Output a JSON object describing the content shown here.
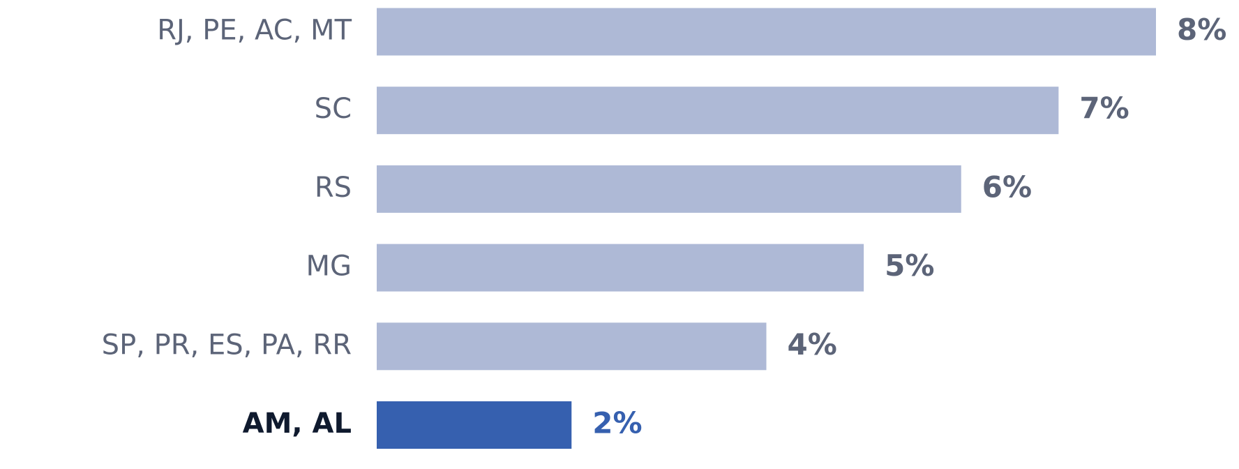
{
  "chart_data": {
    "type": "bar",
    "orientation": "horizontal",
    "categories": [
      "RJ, PE, AC, MT",
      "SC",
      "RS",
      "MG",
      "SP, PR, ES, PA, RR",
      "AM, AL"
    ],
    "values": [
      8,
      7,
      6,
      5,
      4,
      2
    ],
    "value_labels": [
      "8%",
      "7%",
      "6%",
      "5%",
      "4%",
      "2%"
    ],
    "colors": [
      "#aeb9d6",
      "#aeb9d6",
      "#aeb9d6",
      "#aeb9d6",
      "#aeb9d6",
      "#3660af"
    ],
    "label_colors": [
      "#5c6478",
      "#5c6478",
      "#5c6478",
      "#5c6478",
      "#5c6478",
      "#0f1a2e"
    ],
    "value_label_colors": [
      "#5c6478",
      "#5c6478",
      "#5c6478",
      "#5c6478",
      "#5c6478",
      "#3660af"
    ]
  }
}
